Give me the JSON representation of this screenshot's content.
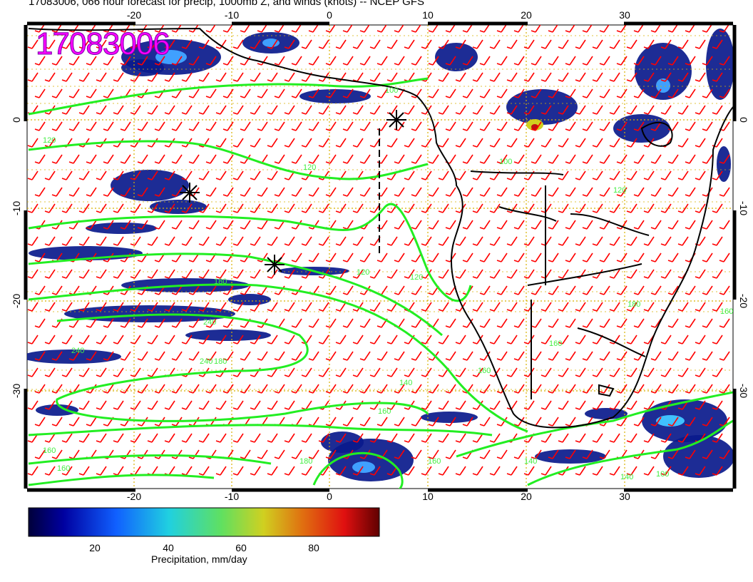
{
  "title": "17083006, 066 hour forecast for precip, 1000mb Z, and winds (knots) -- NCEP GFS",
  "stamp": "17083006",
  "axes": {
    "lon_ticks": [
      "-20",
      "-10",
      "0",
      "10",
      "20",
      "30"
    ],
    "lat_ticks": [
      "0",
      "-10",
      "-20",
      "-30"
    ]
  },
  "contour_labels": [
    "120",
    "120",
    "100",
    "100",
    "180",
    "240",
    "240",
    "240",
    "180",
    "160",
    "160",
    "120",
    "120",
    "140",
    "160",
    "160",
    "160",
    "100",
    "140",
    "120",
    "180",
    "180",
    "160",
    "160",
    "140"
  ],
  "colorbar": {
    "label": "Precipitation, mm/day",
    "ticks": [
      "20",
      "40",
      "60",
      "80"
    ]
  },
  "colors": {
    "contour": "#22ee22",
    "barbs": "#ff0000",
    "coast": "#000000",
    "grid": "#e0b000",
    "stamp": "#ff00ff",
    "precip_low": "#0a1a8c"
  },
  "icons": [
    "storm-marker-icon",
    "storm-marker-icon",
    "storm-marker-icon"
  ]
}
